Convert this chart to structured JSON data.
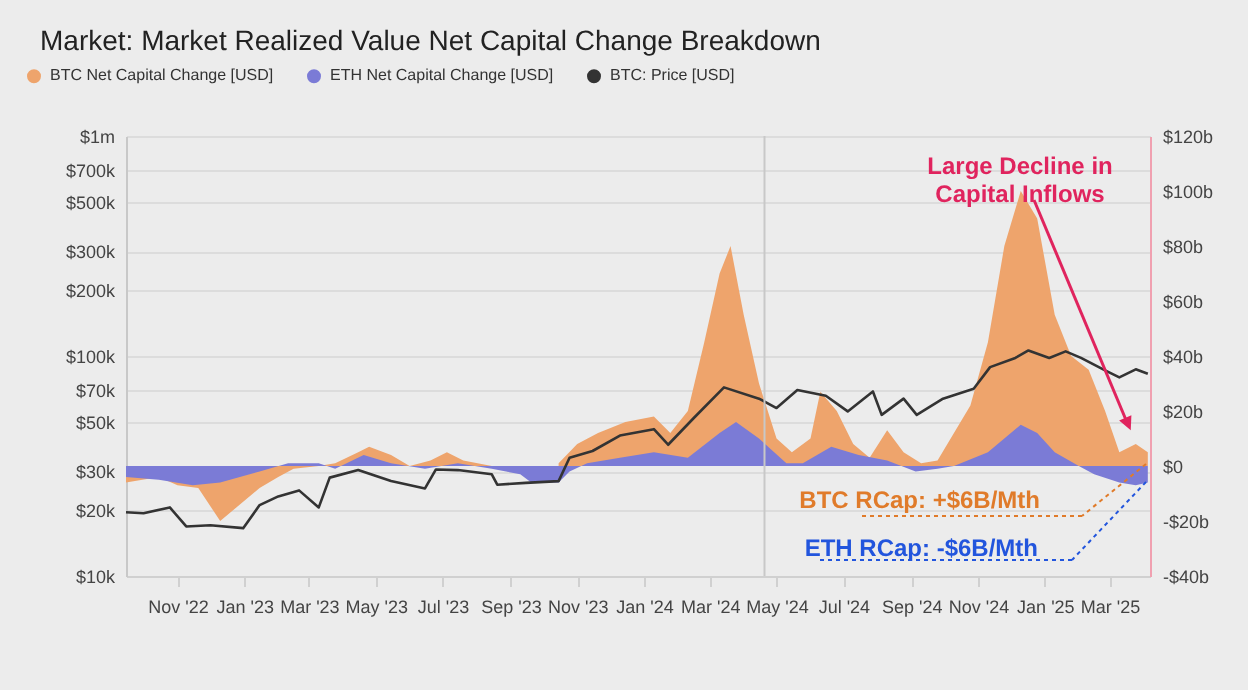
{
  "chart_data": {
    "type": "area",
    "title": "Market: Market Realized Value Net Capital Change Breakdown",
    "xlim": [
      "2022-09-15",
      "2025-04-07"
    ],
    "xticks": [
      {
        "value": "2022-11-01",
        "label": "Nov '22"
      },
      {
        "value": "2023-01-01",
        "label": "Jan '23"
      },
      {
        "value": "2023-03-01",
        "label": "Mar '23"
      },
      {
        "value": "2023-05-01",
        "label": "May '23"
      },
      {
        "value": "2023-07-01",
        "label": "Jul '23"
      },
      {
        "value": "2023-09-01",
        "label": "Sep '23"
      },
      {
        "value": "2023-11-01",
        "label": "Nov '23"
      },
      {
        "value": "2024-01-01",
        "label": "Jan '24"
      },
      {
        "value": "2024-03-01",
        "label": "Mar '24"
      },
      {
        "value": "2024-05-01",
        "label": "May '24"
      },
      {
        "value": "2024-07-01",
        "label": "Jul '24"
      },
      {
        "value": "2024-09-01",
        "label": "Sep '24"
      },
      {
        "value": "2024-11-01",
        "label": "Nov '24"
      },
      {
        "value": "2025-01-01",
        "label": "Jan '25"
      },
      {
        "value": "2025-03-01",
        "label": "Mar '25"
      }
    ],
    "ylim": [
      10000,
      1000000
    ],
    "yticks": [
      {
        "value": 10000,
        "label": "$10k"
      },
      {
        "value": 20000,
        "label": "$20k"
      },
      {
        "value": 30000,
        "label": "$30k"
      },
      {
        "value": 50000,
        "label": "$50k"
      },
      {
        "value": 70000,
        "label": "$70k"
      },
      {
        "value": 100000,
        "label": "$100k"
      },
      {
        "value": 200000,
        "label": "$200k"
      },
      {
        "value": 300000,
        "label": "$300k"
      },
      {
        "value": 500000,
        "label": "$500k"
      },
      {
        "value": 700000,
        "label": "$700k"
      },
      {
        "value": 1000000,
        "label": "$1m"
      }
    ],
    "y2lim": [
      -40,
      120
    ],
    "y2ticks": [
      {
        "value": -40,
        "label": "-$40b"
      },
      {
        "value": -20,
        "label": "-$20b"
      },
      {
        "value": 0,
        "label": "$0"
      },
      {
        "value": 20,
        "label": "$20b"
      },
      {
        "value": 40,
        "label": "$40b"
      },
      {
        "value": 60,
        "label": "$60b"
      },
      {
        "value": 80,
        "label": "$80b"
      },
      {
        "value": 100,
        "label": "$100b"
      },
      {
        "value": 120,
        "label": "$120b"
      }
    ],
    "log": "y",
    "grid": "y",
    "legend": "top",
    "ref_lines": [
      {
        "axis": "x",
        "value": "2024-04-20",
        "color": "#c8c8c8"
      }
    ],
    "series": [
      {
        "name": "BTC Net Capital Change [USD]",
        "type": "area",
        "axis": "y2",
        "color": "#eea46c",
        "x": [
          "2022-09-15",
          "2022-10-15",
          "2022-11-01",
          "2022-11-20",
          "2022-12-10",
          "2022-12-25",
          "2023-01-15",
          "2023-02-01",
          "2023-02-15",
          "2023-03-10",
          "2023-03-25",
          "2023-04-15",
          "2023-04-25",
          "2023-05-15",
          "2023-06-01",
          "2023-06-20",
          "2023-07-05",
          "2023-07-20",
          "2023-08-15",
          "2023-08-30",
          "2023-09-15",
          "2023-10-01",
          "2023-10-15",
          "2023-11-01",
          "2023-11-20",
          "2023-12-15",
          "2024-01-10",
          "2024-01-25",
          "2024-02-10",
          "2024-02-25",
          "2024-03-10",
          "2024-03-20",
          "2024-04-01",
          "2024-04-15",
          "2024-05-01",
          "2024-05-15",
          "2024-06-01",
          "2024-06-10",
          "2024-06-25",
          "2024-07-10",
          "2024-07-25",
          "2024-08-10",
          "2024-08-25",
          "2024-09-10",
          "2024-09-25",
          "2024-10-10",
          "2024-10-25",
          "2024-11-10",
          "2024-11-25",
          "2024-12-10",
          "2024-12-25",
          "2025-01-10",
          "2025-01-25",
          "2025-02-10",
          "2025-02-25",
          "2025-03-10",
          "2025-03-25",
          "2025-04-05"
        ],
        "values": [
          -6,
          -4,
          -7,
          -8,
          -20,
          -15,
          -8,
          -4,
          -1,
          0,
          1,
          5,
          7,
          4,
          0,
          2,
          5,
          2,
          0,
          -2,
          null,
          null,
          1,
          8,
          12,
          16,
          18,
          12,
          20,
          45,
          70,
          80,
          55,
          30,
          10,
          5,
          10,
          27,
          20,
          8,
          3,
          13,
          5,
          1,
          2,
          12,
          22,
          45,
          80,
          100,
          90,
          55,
          40,
          35,
          20,
          5,
          8,
          5
        ]
      },
      {
        "name": "ETH Net Capital Change [USD]",
        "type": "area",
        "axis": "y2",
        "color": "#7b7bd6",
        "x": [
          "2022-09-15",
          "2022-10-15",
          "2022-11-15",
          "2022-12-10",
          "2023-01-15",
          "2023-02-10",
          "2023-03-10",
          "2023-03-25",
          "2023-04-20",
          "2023-05-15",
          "2023-06-15",
          "2023-07-15",
          "2023-08-15",
          "2023-09-10",
          "2023-09-20",
          "2023-10-15",
          "2023-10-25",
          "2023-11-10",
          "2023-12-10",
          "2024-01-10",
          "2024-02-10",
          "2024-03-10",
          "2024-03-25",
          "2024-04-15",
          "2024-05-10",
          "2024-05-25",
          "2024-06-20",
          "2024-07-15",
          "2024-08-10",
          "2024-09-05",
          "2024-09-25",
          "2024-10-10",
          "2024-11-10",
          "2024-12-10",
          "2024-12-25",
          "2025-01-10",
          "2025-02-01",
          "2025-02-15",
          "2025-03-10",
          "2025-03-25",
          "2025-04-05"
        ],
        "values": [
          -4,
          -5,
          -7,
          -6,
          -2,
          1,
          1,
          -1,
          4,
          1,
          -1,
          1,
          -1,
          -3,
          -6,
          -6,
          -2,
          1,
          3,
          5,
          3,
          12,
          16,
          10,
          1,
          1,
          7,
          4,
          2,
          -2,
          -1,
          0,
          5,
          15,
          12,
          5,
          0,
          -3,
          -6,
          -7,
          -6
        ]
      },
      {
        "name": "BTC: Price [USD]",
        "type": "line",
        "axis": "y",
        "color": "#333333",
        "x": [
          "2022-09-15",
          "2022-10-01",
          "2022-10-25",
          "2022-11-09",
          "2022-12-01",
          "2022-12-31",
          "2023-01-15",
          "2023-02-01",
          "2023-02-20",
          "2023-03-10",
          "2023-03-20",
          "2023-04-15",
          "2023-05-15",
          "2023-06-15",
          "2023-06-25",
          "2023-07-15",
          "2023-08-15",
          "2023-08-20",
          "2023-09-15",
          "2023-10-15",
          "2023-10-25",
          "2023-11-15",
          "2023-12-10",
          "2024-01-10",
          "2024-01-23",
          "2024-02-15",
          "2024-03-14",
          "2024-04-15",
          "2024-05-01",
          "2024-05-20",
          "2024-06-15",
          "2024-07-05",
          "2024-07-28",
          "2024-08-05",
          "2024-08-25",
          "2024-09-06",
          "2024-09-30",
          "2024-10-28",
          "2024-11-12",
          "2024-12-05",
          "2024-12-17",
          "2025-01-05",
          "2025-01-20",
          "2025-02-03",
          "2025-02-25",
          "2025-03-10",
          "2025-03-25",
          "2025-04-05"
        ],
        "values": [
          19500,
          19300,
          20500,
          16800,
          17000,
          16500,
          21000,
          23000,
          24500,
          20500,
          28000,
          30300,
          27000,
          25000,
          30500,
          30300,
          29000,
          26000,
          26500,
          27000,
          34500,
          37000,
          43500,
          46500,
          39500,
          52000,
          72000,
          64000,
          58000,
          70000,
          66000,
          56000,
          69000,
          54000,
          64000,
          54000,
          64000,
          71000,
          89000,
          98000,
          106000,
          98000,
          105000,
          98000,
          86000,
          80000,
          87000,
          83000
        ]
      }
    ],
    "annotations": [
      "Large Decline in Capital Inflows",
      "BTC RCap: +$6B/Mth",
      "ETH RCap: -$6B/Mth"
    ]
  }
}
